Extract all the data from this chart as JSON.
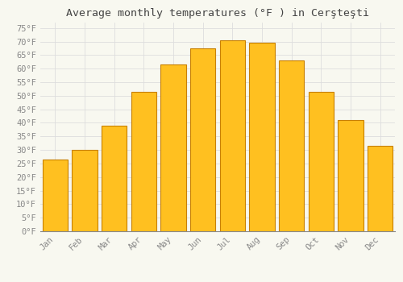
{
  "title": "Average monthly temperatures (°F ) in Cerşteşti",
  "months": [
    "Jan",
    "Feb",
    "Mar",
    "Apr",
    "May",
    "Jun",
    "Jul",
    "Aug",
    "Sep",
    "Oct",
    "Nov",
    "Dec"
  ],
  "values": [
    26.5,
    30.0,
    39.0,
    51.5,
    61.5,
    67.5,
    70.5,
    69.5,
    63.0,
    51.5,
    41.0,
    31.5
  ],
  "bar_color": "#FFC020",
  "bar_edge_color": "#C88000",
  "background_color": "#F8F8F0",
  "grid_color": "#DDDDDD",
  "ylim": [
    0,
    77
  ],
  "yticks": [
    0,
    5,
    10,
    15,
    20,
    25,
    30,
    35,
    40,
    45,
    50,
    55,
    60,
    65,
    70,
    75
  ],
  "tick_label_color": "#888888",
  "title_color": "#444444",
  "font_family": "monospace",
  "title_fontsize": 9.5,
  "tick_fontsize": 7.5
}
